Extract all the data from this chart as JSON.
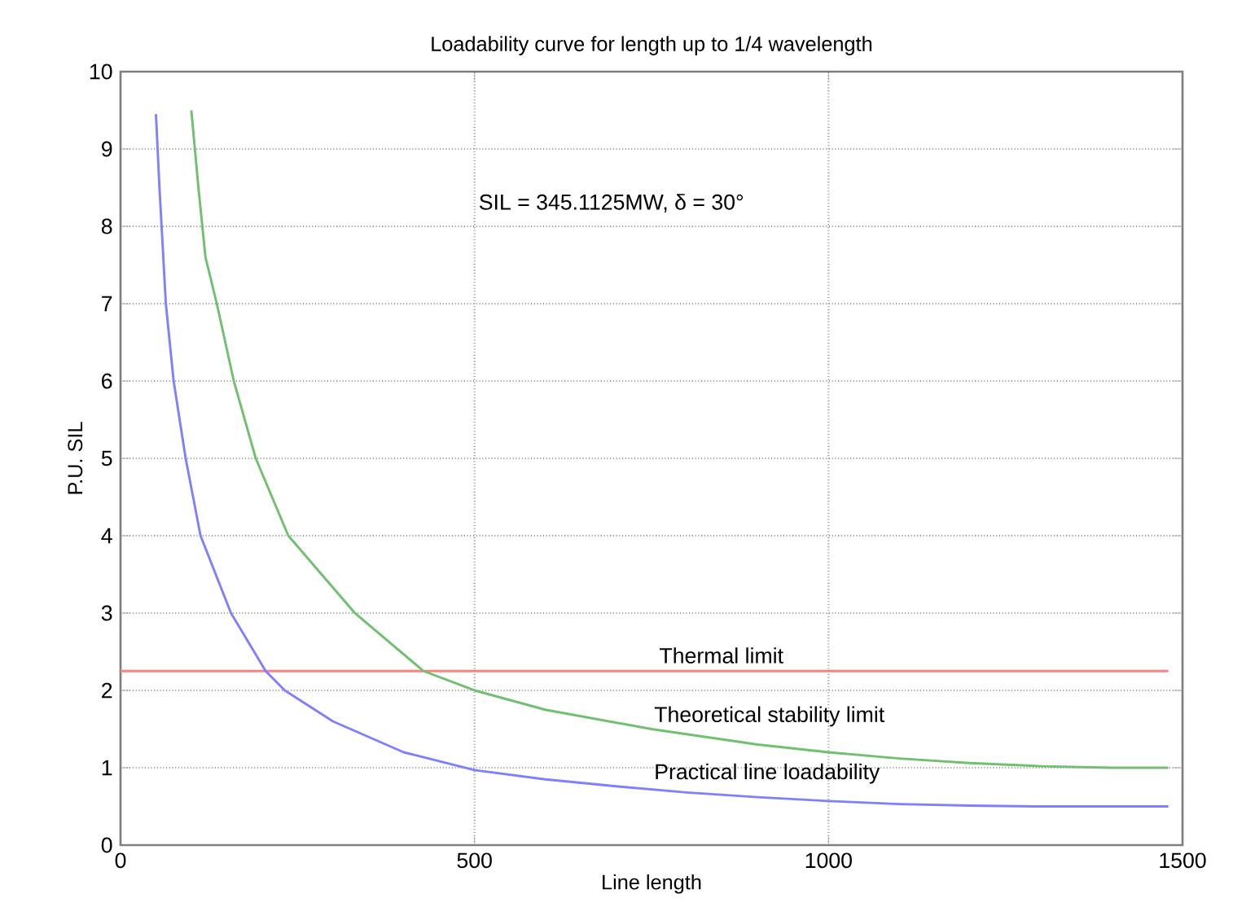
{
  "chart_data": {
    "type": "line",
    "title": "Loadability curve for length up to 1/4 wavelength",
    "xlabel": "Line length",
    "ylabel": "P.U. SIL",
    "xlim": [
      0,
      1500
    ],
    "ylim": [
      0,
      10
    ],
    "xticks": [
      0,
      500,
      1000,
      1500
    ],
    "yticks": [
      0,
      1,
      2,
      3,
      4,
      5,
      6,
      7,
      8,
      9,
      10
    ],
    "grid": true,
    "line_style": "solid",
    "marker": "none",
    "series": [
      {
        "name": "Practical line loadability",
        "color": "#8080ff",
        "x": [
          50,
          55,
          64,
          75,
          92,
          113,
          156,
          205,
          232,
          300,
          400,
          500,
          600,
          700,
          800,
          900,
          1000,
          1100,
          1200,
          1300,
          1480
        ],
        "values": [
          9.45,
          8.5,
          7,
          6,
          5,
          4,
          3,
          2.25,
          2,
          1.6,
          1.2,
          0.97,
          0.85,
          0.76,
          0.68,
          0.62,
          0.57,
          0.53,
          0.51,
          0.5,
          0.5
        ]
      },
      {
        "name": "Theoretical stability limit",
        "color": "#70c070",
        "x": [
          100,
          110,
          120,
          136,
          160,
          191,
          237,
          331,
          428,
          500,
          600,
          750,
          900,
          1000,
          1100,
          1200,
          1300,
          1400,
          1480
        ],
        "values": [
          9.5,
          8.5,
          7.6,
          7,
          6,
          5,
          4,
          3,
          2.25,
          2,
          1.75,
          1.5,
          1.3,
          1.2,
          1.12,
          1.06,
          1.02,
          1,
          1
        ]
      }
    ],
    "ref_lines": [
      {
        "axis": "y",
        "value": 2.25,
        "label": "Thermal limit",
        "color": "#ff8080"
      }
    ],
    "annotations": [
      "SIL = 345.1125MW,  δ = 30°"
    ]
  }
}
